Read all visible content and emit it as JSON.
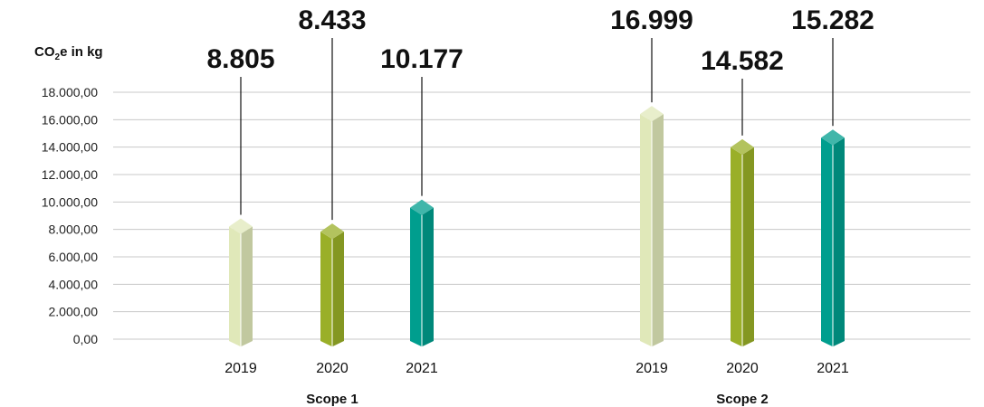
{
  "chart_data": {
    "type": "bar",
    "ylabel_prefix": "CO",
    "ylabel_sub": "2",
    "ylabel_suffix": "e in kg",
    "ylim": [
      0,
      18000
    ],
    "yticks": [
      "0,00",
      "2.000,00",
      "4.000,00",
      "6.000,00",
      "8.000,00",
      "10.000,00",
      "12.000,00",
      "14.000,00",
      "16.000,00",
      "18.000,00"
    ],
    "grid": true,
    "groups": [
      {
        "name": "Scope 1",
        "bars": [
          {
            "year": "2019",
            "value": 8805,
            "label": "8.805",
            "color": "#e0e8b9"
          },
          {
            "year": "2020",
            "value": 8433,
            "label": "8.433",
            "color": "#9aaf28"
          },
          {
            "year": "2021",
            "value": 10177,
            "label": "10.177",
            "color": "#009e8e"
          }
        ]
      },
      {
        "name": "Scope 2",
        "bars": [
          {
            "year": "2019",
            "value": 16999,
            "label": "16.999",
            "color": "#e0e8b9"
          },
          {
            "year": "2020",
            "value": 14582,
            "label": "14.582",
            "color": "#9aaf28"
          },
          {
            "year": "2021",
            "value": 15282,
            "label": "15.282",
            "color": "#009e8e"
          }
        ]
      }
    ]
  }
}
